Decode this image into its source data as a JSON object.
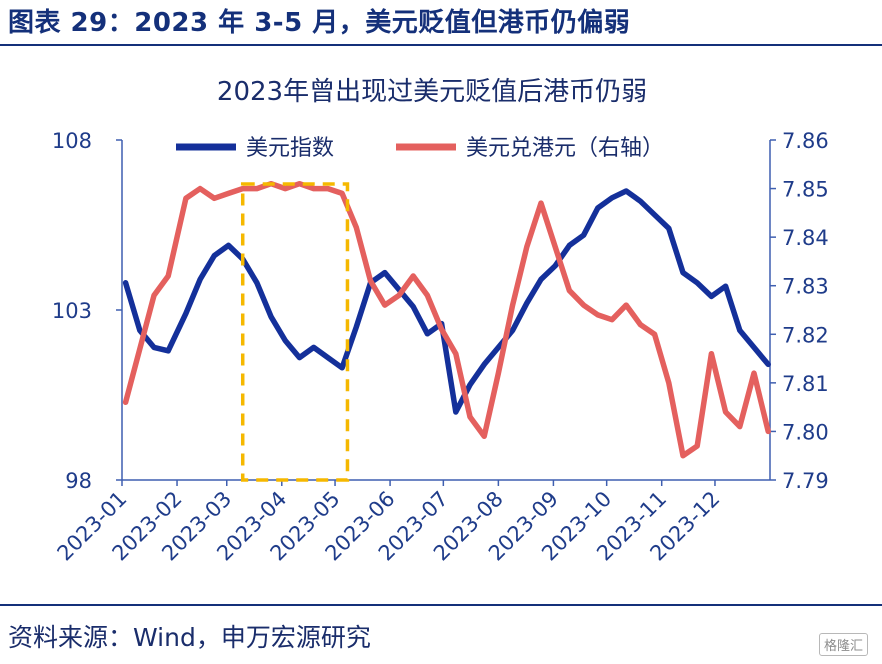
{
  "figure_title": "图表 29：2023 年 3-5 月，美元贬值但港币仍偏弱",
  "source": "资料来源：Wind，申万宏源研究",
  "watermark": "格隆汇",
  "chart_data": {
    "type": "line",
    "title": "2023年曾出现过美元贬值后港币仍弱",
    "x": [
      "2023-01-03",
      "2023-01-11",
      "2023-01-19",
      "2023-01-27",
      "2023-02-06",
      "2023-02-14",
      "2023-02-22",
      "2023-03-02",
      "2023-03-10",
      "2023-03-18",
      "2023-03-26",
      "2023-04-03",
      "2023-04-11",
      "2023-04-19",
      "2023-04-27",
      "2023-05-05",
      "2023-05-13",
      "2023-05-21",
      "2023-05-29",
      "2023-06-06",
      "2023-06-14",
      "2023-06-22",
      "2023-06-30",
      "2023-07-08",
      "2023-07-16",
      "2023-07-24",
      "2023-08-01",
      "2023-08-09",
      "2023-08-17",
      "2023-08-25",
      "2023-09-02",
      "2023-09-10",
      "2023-09-18",
      "2023-09-26",
      "2023-10-04",
      "2023-10-12",
      "2023-10-20",
      "2023-10-28",
      "2023-11-05",
      "2023-11-13",
      "2023-11-21",
      "2023-11-29",
      "2023-12-07",
      "2023-12-15",
      "2023-12-23",
      "2023-12-31"
    ],
    "xticks": [
      "2023-01",
      "2023-02",
      "2023-03",
      "2023-04",
      "2023-05",
      "2023-06",
      "2023-07",
      "2023-08",
      "2023-09",
      "2023-10",
      "2023-11",
      "2023-12"
    ],
    "series": [
      {
        "name": "美元指数",
        "axis": "left",
        "color": "#14309a",
        "values": [
          103.8,
          102.4,
          101.9,
          101.8,
          102.9,
          103.9,
          104.6,
          104.9,
          104.5,
          103.8,
          102.8,
          102.1,
          101.6,
          101.9,
          101.6,
          101.3,
          102.5,
          103.8,
          104.1,
          103.6,
          103.1,
          102.3,
          102.6,
          100.0,
          100.8,
          101.4,
          101.9,
          102.4,
          103.2,
          103.9,
          104.3,
          104.9,
          105.2,
          106.0,
          106.3,
          106.5,
          106.2,
          105.8,
          105.4,
          104.1,
          103.8,
          103.4,
          103.7,
          102.4,
          101.9,
          101.4
        ]
      },
      {
        "name": "美元兑港元（右轴）",
        "axis": "right",
        "color": "#e4605e",
        "values": [
          7.806,
          7.817,
          7.828,
          7.832,
          7.848,
          7.85,
          7.848,
          7.849,
          7.85,
          7.85,
          7.851,
          7.85,
          7.851,
          7.85,
          7.85,
          7.849,
          7.842,
          7.831,
          7.826,
          7.828,
          7.832,
          7.828,
          7.821,
          7.816,
          7.803,
          7.799,
          7.812,
          7.826,
          7.838,
          7.847,
          7.838,
          7.829,
          7.826,
          7.824,
          7.823,
          7.826,
          7.822,
          7.82,
          7.81,
          7.795,
          7.797,
          7.816,
          7.804,
          7.801,
          7.812,
          7.8
        ]
      }
    ],
    "y_left": {
      "min": 98,
      "max": 108,
      "ticks": [
        98,
        103,
        108
      ]
    },
    "y_right": {
      "min": 7.79,
      "max": 7.86,
      "ticks": [
        "7.79",
        "7.80",
        "7.81",
        "7.82",
        "7.83",
        "7.84",
        "7.85",
        "7.86"
      ]
    },
    "legend": [
      "美元指数",
      "美元兑港元（右轴）"
    ],
    "highlight": {
      "x_start": "2023-03-10",
      "x_end": "2023-05-08",
      "color": "#f5b800",
      "style": "dashed"
    }
  }
}
